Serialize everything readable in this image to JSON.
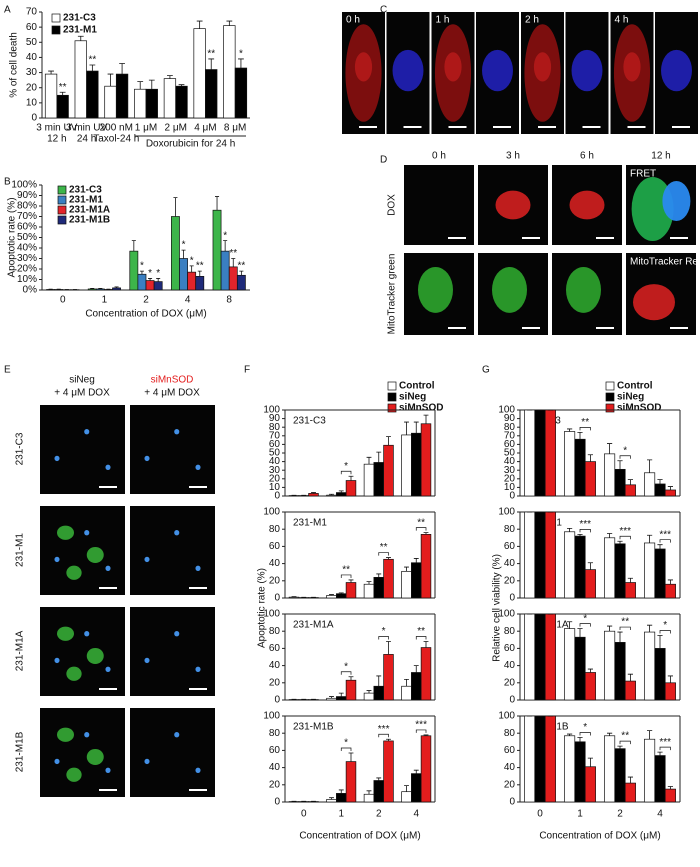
{
  "panel_labels": [
    "A",
    "B",
    "C",
    "D",
    "E",
    "F",
    "G"
  ],
  "micrographs": {
    "C": {
      "times": [
        "0 h",
        "1 h",
        "2 h",
        "4 h"
      ]
    },
    "D": {
      "times": [
        "0 h",
        "3 h",
        "6 h",
        "12 h"
      ],
      "rows": [
        "DOX",
        "MitoTracker green"
      ],
      "insets": [
        "FRET",
        "MitoTracker Red"
      ]
    },
    "E": {
      "columns": [
        [
          "siNeg",
          "+ 4 μM DOX"
        ],
        [
          "siMnSOD",
          "+ 4 μM DOX"
        ]
      ],
      "rows": [
        "231-C3",
        "231-M1",
        "231-M1A",
        "231-M1B"
      ]
    }
  },
  "chart_data": [
    {
      "type": "bar",
      "ylabel": "% of cell death",
      "categories": [
        [
          "3 min UV",
          "12 h"
        ],
        [
          "3 min UV",
          "24 h"
        ],
        [
          "200 nM",
          "Taxol-24 h"
        ],
        [
          "1 μM"
        ],
        [
          "2 μM"
        ],
        [
          "4 μM"
        ],
        [
          "8 μM"
        ]
      ],
      "group_label": "Doxorubicin for 24 h",
      "ylim": [
        0,
        70
      ],
      "yticks": [
        0,
        10,
        20,
        30,
        40,
        50,
        60,
        70
      ],
      "legend": "upper left",
      "series": [
        {
          "name": "231-C3",
          "color": "#ffffff",
          "values": [
            29,
            51,
            21,
            19,
            26,
            59,
            61
          ],
          "errors": [
            2,
            3,
            8,
            5,
            2,
            5,
            3
          ]
        },
        {
          "name": "231-M1",
          "color": "#000000",
          "values": [
            15,
            31,
            29,
            19,
            21,
            32,
            33
          ],
          "errors": [
            2,
            4,
            7,
            6,
            1,
            7,
            6
          ],
          "labels": [
            "**",
            "**",
            null,
            null,
            null,
            "**",
            "*"
          ]
        }
      ]
    },
    {
      "type": "bar",
      "ylabel": "Apoptotic rate (%)",
      "xlabel": "Concentration of DOX (μM)",
      "categories": [
        "0",
        "1",
        "2",
        "4",
        "8"
      ],
      "ylim": [
        0,
        100
      ],
      "yticks": [
        {
          "value": 0,
          "label": "0%"
        },
        {
          "value": 10,
          "label": "10%"
        },
        {
          "value": 20,
          "label": "20%"
        },
        {
          "value": 30,
          "label": "30%"
        },
        {
          "value": 40,
          "label": "40%"
        },
        {
          "value": 50,
          "label": "50%"
        },
        {
          "value": 60,
          "label": "60%"
        },
        {
          "value": 70,
          "label": "70%"
        },
        {
          "value": 80,
          "label": "80%"
        },
        {
          "value": 90,
          "label": "90%"
        },
        {
          "value": 100,
          "label": "100%"
        }
      ],
      "legend": "upper left",
      "series": [
        {
          "name": "231-C3",
          "color": "#3db54a",
          "values": [
            0.5,
            1,
            37,
            70,
            76
          ],
          "errors": [
            0.3,
            0.5,
            10,
            18,
            13
          ]
        },
        {
          "name": "231-M1",
          "color": "#3a7fc1",
          "values": [
            0.5,
            1,
            15,
            30,
            37
          ],
          "errors": [
            0.3,
            0.5,
            3,
            8,
            10
          ],
          "labels": [
            null,
            null,
            "*",
            "*",
            "*"
          ]
        },
        {
          "name": "231-M1A",
          "color": "#e3242b",
          "values": [
            0.3,
            0.5,
            9,
            17,
            22
          ],
          "errors": [
            0.2,
            0.3,
            2,
            6,
            8
          ],
          "labels": [
            null,
            null,
            "*",
            "*",
            "**"
          ]
        },
        {
          "name": "231-M1B",
          "color": "#1f2a7a",
          "values": [
            0.3,
            2,
            8,
            13,
            14
          ],
          "errors": [
            0.2,
            1,
            3,
            5,
            4
          ],
          "labels": [
            null,
            null,
            "*",
            "**",
            "**"
          ]
        }
      ]
    },
    {
      "type": "bar",
      "ylabel": "Apoptotic rate (%)",
      "xlabel": "Concentration of DOX (μM)",
      "categories": [
        "0",
        "1",
        "2",
        "4"
      ],
      "legend": "upper right",
      "series": [
        {
          "name": "Control",
          "color": "#ffffff"
        },
        {
          "name": "siNeg",
          "color": "#000000"
        },
        {
          "name": "siMnSOD",
          "color": "#e31d1d"
        }
      ],
      "panels": [
        {
          "title": "231-C3",
          "ylim": [
            0,
            100
          ],
          "yticks": [
            0,
            10,
            20,
            30,
            40,
            50,
            60,
            70,
            80,
            90,
            100
          ],
          "values": [
            [
              0.5,
              1,
              37,
              71
            ],
            [
              0.5,
              4,
              39,
              73
            ],
            [
              3,
              18,
              59,
              84
            ]
          ],
          "errors": [
            [
              0.3,
              1,
              8,
              15
            ],
            [
              0.3,
              2,
              12,
              13
            ],
            [
              1,
              5,
              10,
              10
            ]
          ],
          "brackets": [
            null,
            "*",
            null,
            null
          ]
        },
        {
          "title": "231-M1",
          "ylim": [
            0,
            100
          ],
          "yticks": [
            0,
            20,
            40,
            60,
            80,
            100
          ],
          "values": [
            [
              1,
              3,
              16,
              31
            ],
            [
              0.5,
              5,
              24,
              41
            ],
            [
              0.5,
              18,
              45,
              74
            ]
          ],
          "errors": [
            [
              0.5,
              1,
              3,
              5
            ],
            [
              0.3,
              1,
              4,
              5
            ],
            [
              0.3,
              3,
              2,
              2
            ]
          ],
          "brackets": [
            null,
            "**",
            "**",
            "**"
          ]
        },
        {
          "title": "231-M1A",
          "ylim": [
            0,
            100
          ],
          "yticks": [
            0,
            20,
            40,
            60,
            80,
            100
          ],
          "values": [
            [
              0.5,
              2,
              8,
              16
            ],
            [
              0.5,
              4,
              16,
              32
            ],
            [
              0.5,
              23,
              53,
              61
            ]
          ],
          "errors": [
            [
              0.3,
              2,
              3,
              8
            ],
            [
              0.3,
              4,
              12,
              8
            ],
            [
              0.3,
              4,
              15,
              7
            ]
          ],
          "brackets": [
            null,
            "*",
            "*",
            "**"
          ]
        },
        {
          "title": "231-M1B",
          "ylim": [
            0,
            100
          ],
          "yticks": [
            0,
            20,
            40,
            60,
            80,
            100
          ],
          "values": [
            [
              0.5,
              3,
              9,
              12
            ],
            [
              0.5,
              10,
              25,
              33
            ],
            [
              0.5,
              47,
              71,
              77
            ]
          ],
          "errors": [
            [
              0.3,
              2,
              4,
              7
            ],
            [
              0.3,
              4,
              3,
              4
            ],
            [
              0.3,
              10,
              2,
              1
            ]
          ],
          "brackets": [
            null,
            "*",
            "***",
            "***"
          ]
        }
      ]
    },
    {
      "type": "bar",
      "ylabel": "Relative cell viability (%)",
      "xlabel": "Concentration of DOX (μM)",
      "categories": [
        "0",
        "1",
        "2",
        "4"
      ],
      "legend": "upper right",
      "series": [
        {
          "name": "Control",
          "color": "#ffffff"
        },
        {
          "name": "siNeg",
          "color": "#000000"
        },
        {
          "name": "siMnSOD",
          "color": "#e31d1d"
        }
      ],
      "panels": [
        {
          "title": "231-C3",
          "ylim": [
            0,
            100
          ],
          "yticks": [
            0,
            10,
            20,
            30,
            40,
            50,
            60,
            70,
            80,
            90,
            100
          ],
          "values": [
            [
              100,
              75,
              49,
              27
            ],
            [
              100,
              66,
              31,
              14
            ],
            [
              100,
              40,
              13,
              7
            ]
          ],
          "errors": [
            [
              0,
              3,
              12,
              15
            ],
            [
              0,
              8,
              10,
              5
            ],
            [
              0,
              8,
              6,
              4
            ]
          ],
          "brackets": [
            null,
            "**",
            "*",
            null
          ]
        },
        {
          "title": "231-M1",
          "ylim": [
            0,
            100
          ],
          "yticks": [
            0,
            20,
            40,
            60,
            80,
            100
          ],
          "values": [
            [
              100,
              77,
              70,
              64
            ],
            [
              100,
              72,
              63,
              57
            ],
            [
              100,
              33,
              18,
              16
            ]
          ],
          "errors": [
            [
              0,
              4,
              5,
              9
            ],
            [
              0,
              2,
              3,
              5
            ],
            [
              0,
              8,
              5,
              5
            ]
          ],
          "brackets": [
            null,
            "***",
            "***",
            "***"
          ]
        },
        {
          "title": "231-M1A",
          "ylim": [
            0,
            100
          ],
          "yticks": [
            0,
            20,
            40,
            60,
            80,
            100
          ],
          "values": [
            [
              100,
              83,
              80,
              79
            ],
            [
              100,
              73,
              67,
              60
            ],
            [
              100,
              32,
              22,
              20
            ]
          ],
          "errors": [
            [
              0,
              8,
              6,
              8
            ],
            [
              0,
              10,
              12,
              15
            ],
            [
              0,
              4,
              8,
              8
            ]
          ],
          "brackets": [
            null,
            "*",
            "**",
            "*"
          ]
        },
        {
          "title": "231-M1B",
          "ylim": [
            0,
            100
          ],
          "yticks": [
            0,
            20,
            40,
            60,
            80,
            100
          ],
          "values": [
            [
              100,
              77,
              77,
              73
            ],
            [
              100,
              70,
              62,
              54
            ],
            [
              100,
              41,
              22,
              15
            ]
          ],
          "errors": [
            [
              0,
              2,
              3,
              10
            ],
            [
              0,
              5,
              3,
              4
            ],
            [
              0,
              10,
              7,
              3
            ]
          ],
          "brackets": [
            null,
            "*",
            "**",
            "***"
          ]
        }
      ]
    }
  ]
}
